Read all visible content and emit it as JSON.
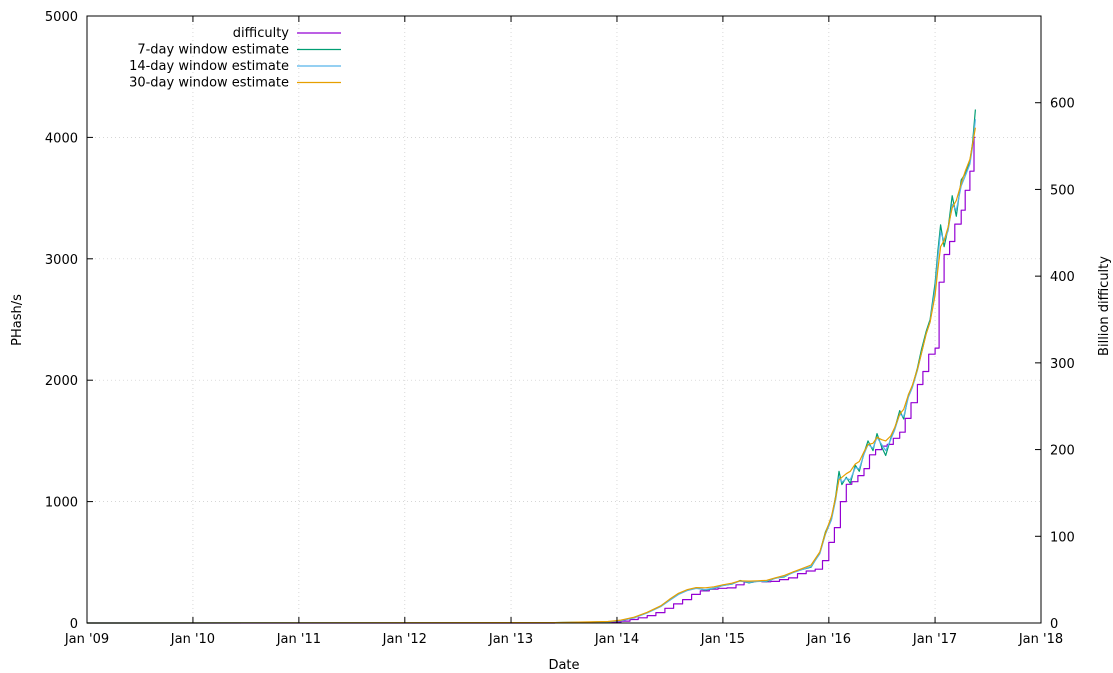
{
  "chart_data": {
    "type": "line",
    "title": "",
    "xlabel": "Date",
    "ylabel": "PHash/s",
    "y2label": "Billion difficulty",
    "x_ticks": [
      "Jan '09",
      "Jan '10",
      "Jan '11",
      "Jan '12",
      "Jan '13",
      "Jan '14",
      "Jan '15",
      "Jan '16",
      "Jan '17",
      "Jan '18"
    ],
    "xlim": [
      "2009-01-01",
      "2018-01-01"
    ],
    "ylim": [
      0,
      5000
    ],
    "y_ticks": [
      0,
      1000,
      2000,
      3000,
      4000,
      5000
    ],
    "y2lim": [
      0,
      700
    ],
    "y2_ticks": [
      0,
      100,
      200,
      300,
      400,
      500,
      600
    ],
    "grid": true,
    "legend_position": "top-left",
    "series": [
      {
        "name": "difficulty",
        "axis": "right",
        "color": "#9400d3",
        "step": true,
        "points": [
          [
            "2009-01-01",
            0
          ],
          [
            "2013-06-01",
            0.1
          ],
          [
            "2013-10-01",
            0.3
          ],
          [
            "2013-12-15",
            1.0
          ],
          [
            "2014-01-15",
            2.2
          ],
          [
            "2014-02-15",
            4.0
          ],
          [
            "2014-03-15",
            6.0
          ],
          [
            "2014-04-15",
            8.5
          ],
          [
            "2014-05-15",
            12.0
          ],
          [
            "2014-06-15",
            17.0
          ],
          [
            "2014-07-15",
            22.0
          ],
          [
            "2014-08-15",
            27.0
          ],
          [
            "2014-09-15",
            33.0
          ],
          [
            "2014-10-15",
            37.0
          ],
          [
            "2014-11-15",
            39.0
          ],
          [
            "2014-12-15",
            40.0
          ],
          [
            "2015-01-15",
            40.5
          ],
          [
            "2015-02-15",
            44.0
          ],
          [
            "2015-03-15",
            47.0
          ],
          [
            "2015-04-15",
            48.0
          ],
          [
            "2015-05-15",
            47.5
          ],
          [
            "2015-06-15",
            48.0
          ],
          [
            "2015-07-15",
            50.0
          ],
          [
            "2015-08-15",
            52.0
          ],
          [
            "2015-09-15",
            57.0
          ],
          [
            "2015-10-15",
            60.0
          ],
          [
            "2015-11-15",
            62.0
          ],
          [
            "2015-12-10",
            72.0
          ],
          [
            "2016-01-01",
            93.0
          ],
          [
            "2016-01-20",
            110.0
          ],
          [
            "2016-02-10",
            140.0
          ],
          [
            "2016-03-01",
            160.0
          ],
          [
            "2016-03-20",
            163.0
          ],
          [
            "2016-04-10",
            170.0
          ],
          [
            "2016-05-01",
            178.0
          ],
          [
            "2016-05-20",
            194.0
          ],
          [
            "2016-06-10",
            200.0
          ],
          [
            "2016-07-01",
            204.0
          ],
          [
            "2016-07-20",
            206.0
          ],
          [
            "2016-08-10",
            213.0
          ],
          [
            "2016-09-01",
            220.0
          ],
          [
            "2016-09-20",
            236.0
          ],
          [
            "2016-10-10",
            254.0
          ],
          [
            "2016-11-01",
            275.0
          ],
          [
            "2016-11-20",
            290.0
          ],
          [
            "2016-12-10",
            310.0
          ],
          [
            "2017-01-01",
            317.0
          ],
          [
            "2017-01-15",
            393.0
          ],
          [
            "2017-02-01",
            425.0
          ],
          [
            "2017-02-20",
            440.0
          ],
          [
            "2017-03-10",
            460.0
          ],
          [
            "2017-04-01",
            476.0
          ],
          [
            "2017-04-15",
            499.0
          ],
          [
            "2017-05-01",
            521.0
          ],
          [
            "2017-05-15",
            560.0
          ],
          [
            "2017-05-20",
            560.0
          ]
        ]
      },
      {
        "name": "7-day window estimate",
        "axis": "left",
        "color": "#009e73",
        "step": false,
        "points": [
          [
            "2009-01-01",
            0
          ],
          [
            "2013-06-01",
            3
          ],
          [
            "2013-12-01",
            10
          ],
          [
            "2014-01-15",
            20
          ],
          [
            "2014-03-01",
            45
          ],
          [
            "2014-04-15",
            85
          ],
          [
            "2014-06-01",
            140
          ],
          [
            "2014-07-01",
            190
          ],
          [
            "2014-08-01",
            240
          ],
          [
            "2014-09-01",
            270
          ],
          [
            "2014-10-01",
            290
          ],
          [
            "2014-11-01",
            270
          ],
          [
            "2014-12-01",
            285
          ],
          [
            "2015-01-01",
            310
          ],
          [
            "2015-02-01",
            320
          ],
          [
            "2015-03-01",
            350
          ],
          [
            "2015-04-01",
            330
          ],
          [
            "2015-05-01",
            345
          ],
          [
            "2015-06-01",
            340
          ],
          [
            "2015-07-01",
            370
          ],
          [
            "2015-08-01",
            380
          ],
          [
            "2015-09-01",
            420
          ],
          [
            "2015-10-01",
            440
          ],
          [
            "2015-11-01",
            460
          ],
          [
            "2015-12-01",
            580
          ],
          [
            "2015-12-20",
            750
          ],
          [
            "2016-01-10",
            860
          ],
          [
            "2016-01-25",
            1050
          ],
          [
            "2016-02-05",
            1250
          ],
          [
            "2016-02-15",
            1140
          ],
          [
            "2016-03-01",
            1200
          ],
          [
            "2016-03-15",
            1150
          ],
          [
            "2016-04-01",
            1300
          ],
          [
            "2016-04-15",
            1250
          ],
          [
            "2016-05-01",
            1400
          ],
          [
            "2016-05-15",
            1500
          ],
          [
            "2016-06-01",
            1420
          ],
          [
            "2016-06-15",
            1560
          ],
          [
            "2016-07-01",
            1450
          ],
          [
            "2016-07-15",
            1380
          ],
          [
            "2016-08-01",
            1520
          ],
          [
            "2016-08-15",
            1600
          ],
          [
            "2016-09-01",
            1750
          ],
          [
            "2016-09-15",
            1680
          ],
          [
            "2016-10-01",
            1880
          ],
          [
            "2016-10-15",
            1950
          ],
          [
            "2016-11-01",
            2100
          ],
          [
            "2016-11-15",
            2250
          ],
          [
            "2016-12-01",
            2400
          ],
          [
            "2016-12-15",
            2500
          ],
          [
            "2017-01-01",
            2800
          ],
          [
            "2017-01-10",
            3050
          ],
          [
            "2017-01-20",
            3280
          ],
          [
            "2017-02-01",
            3100
          ],
          [
            "2017-02-15",
            3250
          ],
          [
            "2017-03-01",
            3520
          ],
          [
            "2017-03-15",
            3350
          ],
          [
            "2017-04-01",
            3650
          ],
          [
            "2017-04-15",
            3700
          ],
          [
            "2017-05-01",
            3800
          ],
          [
            "2017-05-10",
            3950
          ],
          [
            "2017-05-20",
            4230
          ]
        ]
      },
      {
        "name": "14-day window estimate",
        "axis": "left",
        "color": "#56b4e9",
        "step": false,
        "points": [
          [
            "2009-01-01",
            0
          ],
          [
            "2013-06-01",
            3
          ],
          [
            "2013-12-01",
            10
          ],
          [
            "2014-01-15",
            20
          ],
          [
            "2014-03-01",
            42
          ],
          [
            "2014-04-15",
            82
          ],
          [
            "2014-06-01",
            135
          ],
          [
            "2014-07-01",
            185
          ],
          [
            "2014-08-01",
            235
          ],
          [
            "2014-09-01",
            268
          ],
          [
            "2014-10-01",
            285
          ],
          [
            "2014-11-01",
            275
          ],
          [
            "2014-12-01",
            288
          ],
          [
            "2015-01-01",
            308
          ],
          [
            "2015-02-01",
            322
          ],
          [
            "2015-03-01",
            345
          ],
          [
            "2015-04-01",
            335
          ],
          [
            "2015-05-01",
            342
          ],
          [
            "2015-06-01",
            345
          ],
          [
            "2015-07-01",
            368
          ],
          [
            "2015-08-01",
            385
          ],
          [
            "2015-09-01",
            415
          ],
          [
            "2015-10-01",
            440
          ],
          [
            "2015-11-01",
            465
          ],
          [
            "2015-12-01",
            570
          ],
          [
            "2015-12-20",
            730
          ],
          [
            "2016-01-10",
            850
          ],
          [
            "2016-01-25",
            1020
          ],
          [
            "2016-02-05",
            1200
          ],
          [
            "2016-02-15",
            1160
          ],
          [
            "2016-03-01",
            1190
          ],
          [
            "2016-03-15",
            1180
          ],
          [
            "2016-04-01",
            1280
          ],
          [
            "2016-04-15",
            1270
          ],
          [
            "2016-05-01",
            1390
          ],
          [
            "2016-05-15",
            1470
          ],
          [
            "2016-06-01",
            1440
          ],
          [
            "2016-06-15",
            1530
          ],
          [
            "2016-07-01",
            1470
          ],
          [
            "2016-07-15",
            1420
          ],
          [
            "2016-08-01",
            1510
          ],
          [
            "2016-08-15",
            1590
          ],
          [
            "2016-09-01",
            1720
          ],
          [
            "2016-09-15",
            1700
          ],
          [
            "2016-10-01",
            1860
          ],
          [
            "2016-10-15",
            1940
          ],
          [
            "2016-11-01",
            2080
          ],
          [
            "2016-11-15",
            2220
          ],
          [
            "2016-12-01",
            2380
          ],
          [
            "2016-12-15",
            2480
          ],
          [
            "2017-01-01",
            2750
          ],
          [
            "2017-01-10",
            3000
          ],
          [
            "2017-01-20",
            3220
          ],
          [
            "2017-02-01",
            3150
          ],
          [
            "2017-02-15",
            3230
          ],
          [
            "2017-03-01",
            3450
          ],
          [
            "2017-03-15",
            3400
          ],
          [
            "2017-04-01",
            3600
          ],
          [
            "2017-04-15",
            3680
          ],
          [
            "2017-05-01",
            3780
          ],
          [
            "2017-05-10",
            3920
          ],
          [
            "2017-05-20",
            4150
          ]
        ]
      },
      {
        "name": "30-day window estimate",
        "axis": "left",
        "color": "#e69f00",
        "step": false,
        "points": [
          [
            "2009-01-01",
            0
          ],
          [
            "2013-06-01",
            3
          ],
          [
            "2013-12-01",
            12
          ],
          [
            "2014-01-15",
            24
          ],
          [
            "2014-03-01",
            48
          ],
          [
            "2014-04-15",
            88
          ],
          [
            "2014-06-01",
            142
          ],
          [
            "2014-07-01",
            195
          ],
          [
            "2014-08-01",
            245
          ],
          [
            "2014-09-01",
            275
          ],
          [
            "2014-10-01",
            292
          ],
          [
            "2014-11-01",
            290
          ],
          [
            "2014-12-01",
            298
          ],
          [
            "2015-01-01",
            315
          ],
          [
            "2015-02-01",
            328
          ],
          [
            "2015-03-01",
            348
          ],
          [
            "2015-04-01",
            345
          ],
          [
            "2015-05-01",
            348
          ],
          [
            "2015-06-01",
            352
          ],
          [
            "2015-07-01",
            372
          ],
          [
            "2015-08-01",
            392
          ],
          [
            "2015-09-01",
            422
          ],
          [
            "2015-10-01",
            448
          ],
          [
            "2015-11-01",
            478
          ],
          [
            "2015-12-01",
            585
          ],
          [
            "2015-12-20",
            740
          ],
          [
            "2016-01-10",
            880
          ],
          [
            "2016-01-25",
            1040
          ],
          [
            "2016-02-05",
            1180
          ],
          [
            "2016-02-15",
            1200
          ],
          [
            "2016-03-01",
            1230
          ],
          [
            "2016-03-15",
            1250
          ],
          [
            "2016-04-01",
            1310
          ],
          [
            "2016-04-15",
            1330
          ],
          [
            "2016-05-01",
            1410
          ],
          [
            "2016-05-15",
            1470
          ],
          [
            "2016-06-01",
            1480
          ],
          [
            "2016-06-15",
            1530
          ],
          [
            "2016-07-01",
            1510
          ],
          [
            "2016-07-15",
            1500
          ],
          [
            "2016-08-01",
            1540
          ],
          [
            "2016-08-15",
            1610
          ],
          [
            "2016-09-01",
            1720
          ],
          [
            "2016-09-15",
            1760
          ],
          [
            "2016-10-01",
            1880
          ],
          [
            "2016-10-15",
            1960
          ],
          [
            "2016-11-01",
            2090
          ],
          [
            "2016-11-15",
            2220
          ],
          [
            "2016-12-01",
            2380
          ],
          [
            "2016-12-15",
            2480
          ],
          [
            "2017-01-01",
            2700
          ],
          [
            "2017-01-10",
            2900
          ],
          [
            "2017-01-20",
            3100
          ],
          [
            "2017-02-01",
            3150
          ],
          [
            "2017-02-15",
            3260
          ],
          [
            "2017-03-01",
            3420
          ],
          [
            "2017-03-15",
            3480
          ],
          [
            "2017-04-01",
            3620
          ],
          [
            "2017-04-15",
            3720
          ],
          [
            "2017-05-01",
            3820
          ],
          [
            "2017-05-10",
            3940
          ],
          [
            "2017-05-20",
            4080
          ]
        ]
      }
    ]
  }
}
